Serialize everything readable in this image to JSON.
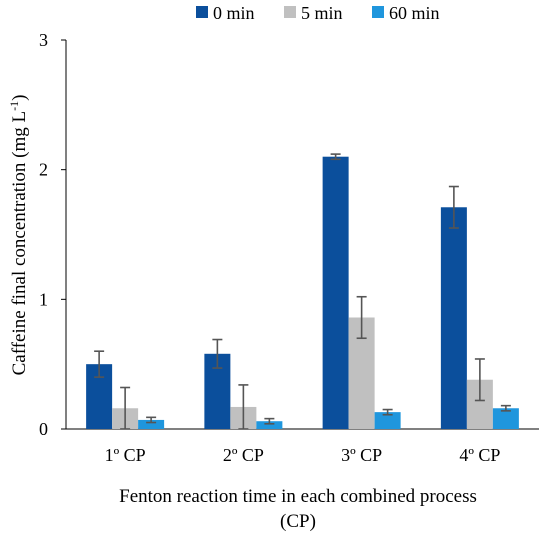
{
  "chart_data": {
    "type": "bar",
    "categories": [
      "1º CP",
      "2º CP",
      "3º CP",
      "4º CP"
    ],
    "series": [
      {
        "name": "0 min",
        "color": "#0b4f9c",
        "values": [
          0.5,
          0.58,
          2.1,
          1.71
        ],
        "errors": [
          0.1,
          0.11,
          0.02,
          0.16
        ]
      },
      {
        "name": "5 min",
        "color": "#c0c0c0",
        "values": [
          0.16,
          0.17,
          0.86,
          0.38
        ],
        "errors": [
          0.16,
          0.17,
          0.16,
          0.16
        ]
      },
      {
        "name": "60 min",
        "color": "#1f96dd",
        "values": [
          0.07,
          0.06,
          0.13,
          0.16
        ],
        "errors": [
          0.02,
          0.02,
          0.02,
          0.02
        ]
      }
    ],
    "ylim": [
      0,
      3
    ],
    "yticks": [
      0,
      1,
      2,
      3
    ],
    "ylabel": "Caffeine final concentration (mg L",
    "ylabel_sup": "-1",
    "ylabel_end": ")",
    "xlabel_line1": "Fenton reaction time in each combined process",
    "xlabel_line2": "(CP)",
    "legend_position": "top",
    "grid": false
  }
}
